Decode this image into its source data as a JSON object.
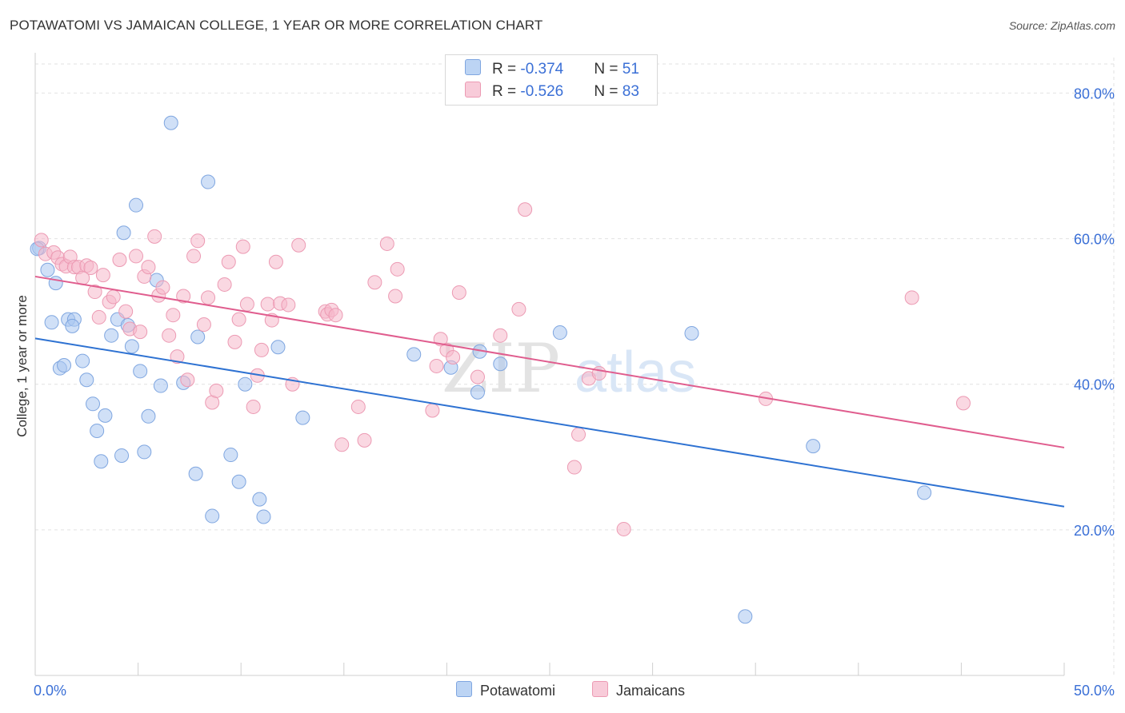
{
  "title": "POTAWATOMI VS JAMAICAN COLLEGE, 1 YEAR OR MORE CORRELATION CHART",
  "source": "Source: ZipAtlas.com",
  "legend_top": {
    "rows": [
      {
        "r_label": "R = ",
        "r_value": "-0.374",
        "n_label": "N = ",
        "n_value": "51"
      },
      {
        "r_label": "R = ",
        "r_value": "-0.526",
        "n_label": "N = ",
        "n_value": "83"
      }
    ]
  },
  "legend_bottom": {
    "items": [
      "Potawatomi",
      "Jamaicans"
    ]
  },
  "watermark": {
    "zip": "ZIP",
    "atlas": "atlas"
  },
  "colors": {
    "blue_fill": "#a9c6f0",
    "blue_stroke": "#7fa6e0",
    "blue_line": "#2e72d2",
    "pink_fill": "#f5b8cb",
    "pink_stroke": "#ec9ab3",
    "pink_line": "#e05d8e",
    "tick_text": "#3a6fd6",
    "grid": "#e2e2e2"
  },
  "chart_data": {
    "type": "scatter",
    "title": "POTAWATOMI VS JAMAICAN COLLEGE, 1 YEAR OR MORE CORRELATION CHART",
    "xlabel": "",
    "ylabel": "College, 1 year or more",
    "xlim": [
      0,
      50
    ],
    "ylim": [
      0,
      84
    ],
    "x_tick_labels": [
      "0.0%",
      "50.0%"
    ],
    "y_ticks": [
      20,
      40,
      60,
      80
    ],
    "y_tick_labels": [
      "20.0%",
      "40.0%",
      "60.0%",
      "80.0%"
    ],
    "grid": true,
    "series": [
      {
        "name": "Potawatomi",
        "color": "blue",
        "R": -0.374,
        "N": 51,
        "trend": {
          "x": [
            0,
            50
          ],
          "y": [
            46.3,
            23.2
          ]
        },
        "points": [
          [
            0.2,
            58.7
          ],
          [
            0.6,
            55.7
          ],
          [
            1.0,
            53.9
          ],
          [
            0.8,
            48.5
          ],
          [
            1.2,
            42.2
          ],
          [
            1.4,
            42.6
          ],
          [
            1.6,
            48.9
          ],
          [
            1.9,
            48.9
          ],
          [
            1.8,
            48.0
          ],
          [
            2.3,
            43.2
          ],
          [
            2.5,
            40.6
          ],
          [
            2.8,
            37.3
          ],
          [
            3.0,
            33.6
          ],
          [
            3.2,
            29.4
          ],
          [
            3.4,
            35.7
          ],
          [
            3.7,
            46.7
          ],
          [
            4.0,
            48.9
          ],
          [
            4.2,
            30.2
          ],
          [
            4.3,
            60.8
          ],
          [
            4.5,
            48.1
          ],
          [
            4.7,
            45.2
          ],
          [
            4.9,
            64.6
          ],
          [
            5.1,
            41.8
          ],
          [
            5.3,
            30.7
          ],
          [
            5.5,
            35.6
          ],
          [
            5.9,
            54.3
          ],
          [
            6.1,
            39.8
          ],
          [
            6.6,
            75.9
          ],
          [
            7.2,
            40.2
          ],
          [
            7.8,
            27.7
          ],
          [
            7.9,
            46.5
          ],
          [
            8.4,
            67.8
          ],
          [
            8.6,
            21.9
          ],
          [
            9.5,
            30.3
          ],
          [
            9.9,
            26.6
          ],
          [
            10.2,
            40.0
          ],
          [
            10.9,
            24.2
          ],
          [
            11.1,
            21.8
          ],
          [
            11.8,
            45.1
          ],
          [
            13.0,
            35.4
          ],
          [
            18.4,
            44.1
          ],
          [
            20.2,
            42.3
          ],
          [
            21.5,
            38.9
          ],
          [
            21.6,
            44.5
          ],
          [
            22.6,
            42.8
          ],
          [
            25.5,
            47.1
          ],
          [
            31.9,
            47.0
          ],
          [
            34.5,
            8.1
          ],
          [
            37.8,
            31.5
          ],
          [
            43.2,
            25.1
          ],
          [
            0.1,
            58.6
          ]
        ]
      },
      {
        "name": "Jamaicans",
        "color": "pink",
        "R": -0.526,
        "N": 83,
        "trend": {
          "x": [
            0,
            50
          ],
          "y": [
            54.8,
            31.3
          ]
        },
        "points": [
          [
            0.3,
            59.8
          ],
          [
            0.5,
            57.9
          ],
          [
            0.9,
            58.1
          ],
          [
            1.1,
            57.4
          ],
          [
            1.3,
            56.5
          ],
          [
            1.5,
            56.2
          ],
          [
            1.7,
            57.5
          ],
          [
            1.9,
            56.1
          ],
          [
            2.1,
            56.1
          ],
          [
            2.3,
            54.6
          ],
          [
            2.5,
            56.3
          ],
          [
            2.7,
            56.0
          ],
          [
            2.9,
            52.7
          ],
          [
            3.1,
            49.2
          ],
          [
            3.3,
            55.0
          ],
          [
            3.6,
            51.3
          ],
          [
            3.8,
            52.0
          ],
          [
            4.1,
            57.1
          ],
          [
            4.4,
            50.0
          ],
          [
            4.6,
            47.6
          ],
          [
            4.9,
            57.6
          ],
          [
            5.1,
            47.2
          ],
          [
            5.3,
            54.8
          ],
          [
            5.5,
            56.1
          ],
          [
            5.8,
            60.3
          ],
          [
            6.0,
            52.2
          ],
          [
            6.2,
            53.3
          ],
          [
            6.5,
            46.7
          ],
          [
            6.7,
            49.5
          ],
          [
            6.9,
            43.8
          ],
          [
            7.2,
            52.1
          ],
          [
            7.4,
            40.6
          ],
          [
            7.7,
            57.6
          ],
          [
            7.9,
            59.7
          ],
          [
            8.2,
            48.2
          ],
          [
            8.4,
            51.9
          ],
          [
            8.6,
            37.5
          ],
          [
            8.8,
            39.1
          ],
          [
            9.2,
            53.7
          ],
          [
            9.4,
            56.8
          ],
          [
            9.7,
            45.8
          ],
          [
            9.9,
            48.9
          ],
          [
            10.1,
            58.9
          ],
          [
            10.3,
            51.0
          ],
          [
            10.6,
            36.9
          ],
          [
            10.8,
            41.2
          ],
          [
            11.0,
            44.7
          ],
          [
            11.3,
            51.0
          ],
          [
            11.5,
            48.8
          ],
          [
            11.7,
            56.8
          ],
          [
            11.9,
            51.1
          ],
          [
            12.3,
            50.9
          ],
          [
            12.5,
            40.0
          ],
          [
            12.8,
            59.1
          ],
          [
            14.1,
            50.0
          ],
          [
            14.2,
            49.6
          ],
          [
            14.4,
            50.2
          ],
          [
            14.6,
            49.5
          ],
          [
            14.9,
            31.7
          ],
          [
            15.7,
            36.9
          ],
          [
            16.0,
            32.3
          ],
          [
            16.5,
            54.0
          ],
          [
            17.1,
            59.3
          ],
          [
            17.5,
            52.1
          ],
          [
            17.6,
            55.8
          ],
          [
            19.3,
            36.4
          ],
          [
            19.5,
            42.5
          ],
          [
            19.7,
            46.2
          ],
          [
            20.0,
            44.7
          ],
          [
            20.3,
            43.7
          ],
          [
            20.6,
            52.6
          ],
          [
            21.5,
            41.0
          ],
          [
            22.6,
            46.7
          ],
          [
            23.5,
            50.3
          ],
          [
            23.8,
            64.0
          ],
          [
            26.2,
            28.6
          ],
          [
            26.4,
            33.1
          ],
          [
            26.9,
            40.8
          ],
          [
            27.4,
            41.5
          ],
          [
            28.6,
            20.1
          ],
          [
            35.5,
            38.0
          ],
          [
            42.6,
            51.9
          ],
          [
            45.1,
            37.4
          ]
        ]
      }
    ]
  }
}
